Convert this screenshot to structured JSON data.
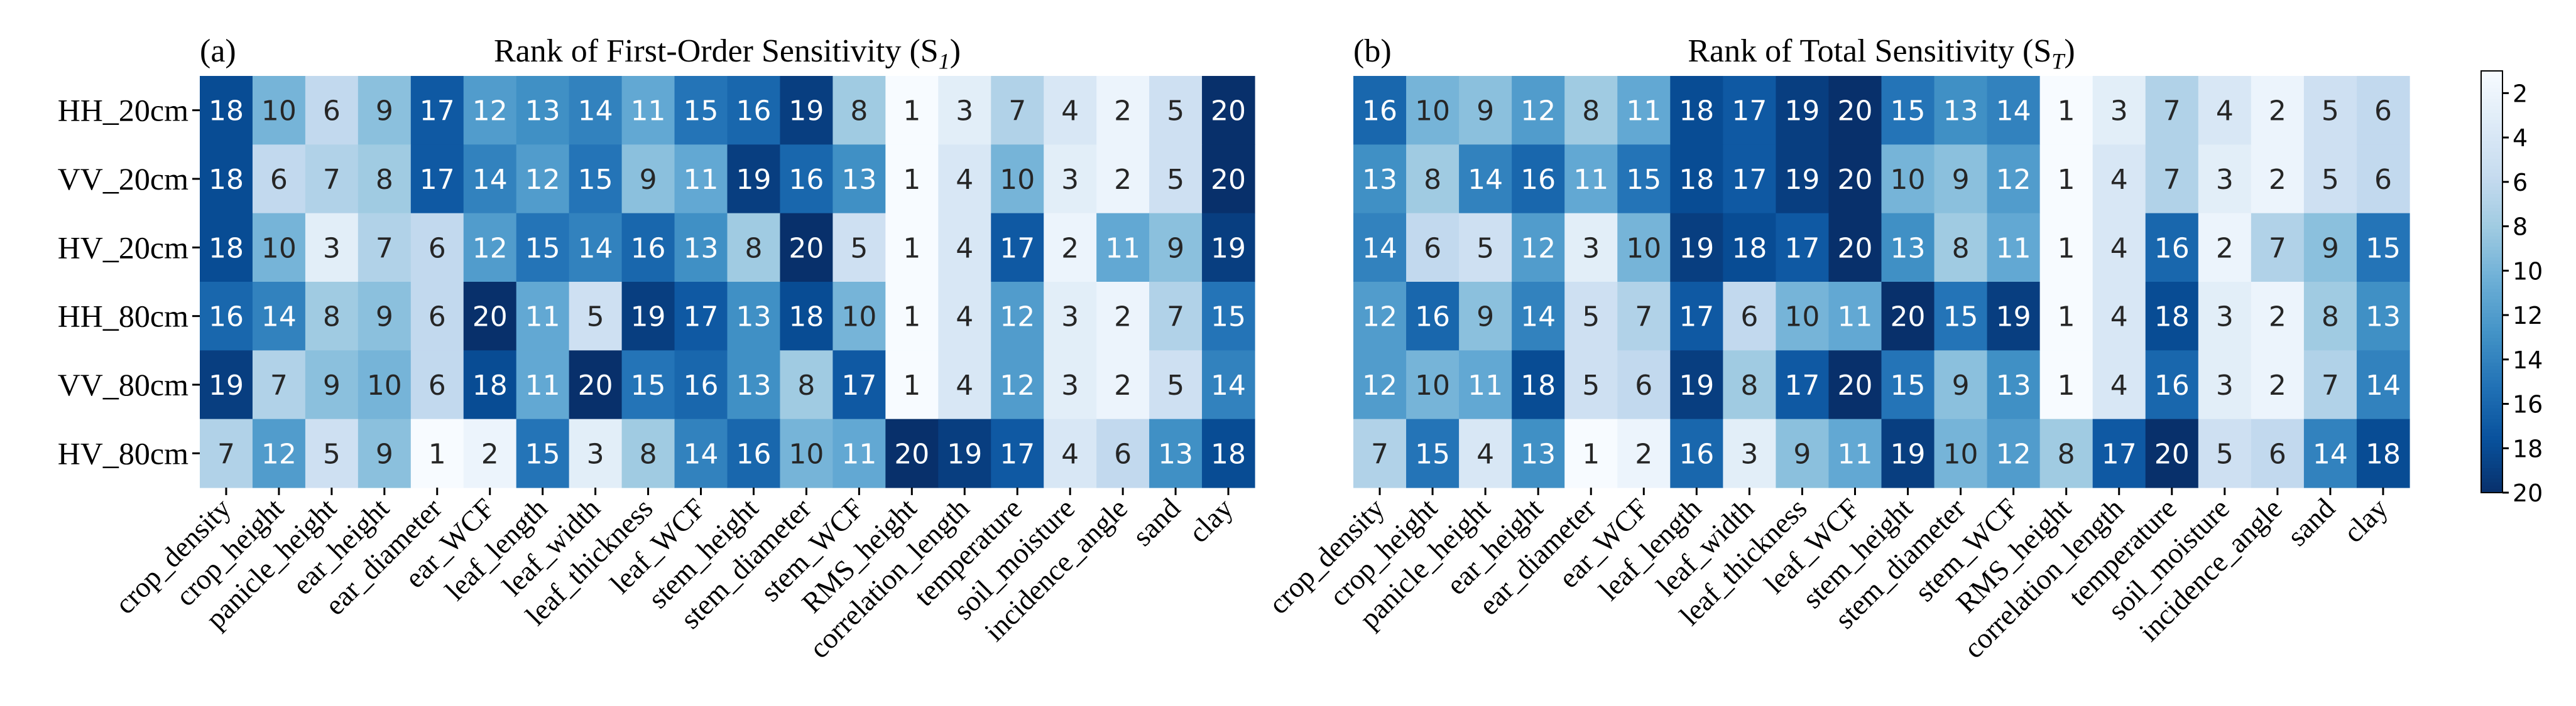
{
  "chart_data": [
    {
      "type": "heatmap",
      "panel_label": "(a)",
      "title": "Rank of First-Order Sensitivity (S",
      "title_sub": "1",
      "title_close": ")",
      "rows": [
        "HH_20cm",
        "VV_20cm",
        "HV_20cm",
        "HH_80cm",
        "VV_80cm",
        "HV_80cm"
      ],
      "columns": [
        "crop_density",
        "crop_height",
        "panicle_height",
        "ear_height",
        "ear_diameter",
        "ear_WCF",
        "leaf_length",
        "leaf_width",
        "leaf_thickness",
        "leaf_WCF",
        "stem_height",
        "stem_diameter",
        "stem_WCF",
        "RMS_height",
        "correlation_length",
        "temperature",
        "soil_moisture",
        "incidence_angle",
        "sand",
        "clay"
      ],
      "values": [
        [
          18,
          10,
          6,
          9,
          17,
          12,
          13,
          14,
          11,
          15,
          16,
          19,
          8,
          1,
          3,
          7,
          4,
          2,
          5,
          20
        ],
        [
          18,
          6,
          7,
          8,
          17,
          14,
          12,
          15,
          9,
          11,
          19,
          16,
          13,
          1,
          4,
          10,
          3,
          2,
          5,
          20
        ],
        [
          18,
          10,
          3,
          7,
          6,
          12,
          15,
          14,
          16,
          13,
          8,
          20,
          5,
          1,
          4,
          17,
          2,
          11,
          9,
          19
        ],
        [
          16,
          14,
          8,
          9,
          6,
          20,
          11,
          5,
          19,
          17,
          13,
          18,
          10,
          1,
          4,
          12,
          3,
          2,
          7,
          15
        ],
        [
          19,
          7,
          9,
          10,
          6,
          18,
          11,
          20,
          15,
          16,
          13,
          8,
          17,
          1,
          4,
          12,
          3,
          2,
          5,
          14
        ],
        [
          7,
          12,
          5,
          9,
          1,
          2,
          15,
          3,
          8,
          14,
          16,
          10,
          11,
          20,
          19,
          17,
          4,
          6,
          13,
          18
        ]
      ]
    },
    {
      "type": "heatmap",
      "panel_label": "(b)",
      "title": "Rank of Total Sensitivity (S",
      "title_sub": "T",
      "title_close": ")",
      "rows": [
        "HH_20cm",
        "VV_20cm",
        "HV_20cm",
        "HH_80cm",
        "VV_80cm",
        "HV_80cm"
      ],
      "columns": [
        "crop_density",
        "crop_height",
        "panicle_height",
        "ear_height",
        "ear_diameter",
        "ear_WCF",
        "leaf_length",
        "leaf_width",
        "leaf_thickness",
        "leaf_WCF",
        "stem_height",
        "stem_diameter",
        "stem_WCF",
        "RMS_height",
        "correlation_length",
        "temperature",
        "soil_moisture",
        "incidence_angle",
        "sand",
        "clay"
      ],
      "values": [
        [
          16,
          10,
          9,
          12,
          8,
          11,
          18,
          17,
          19,
          20,
          15,
          13,
          14,
          1,
          3,
          7,
          4,
          2,
          5,
          6
        ],
        [
          13,
          8,
          14,
          16,
          11,
          15,
          18,
          17,
          19,
          20,
          10,
          9,
          12,
          1,
          4,
          7,
          3,
          2,
          5,
          6
        ],
        [
          14,
          6,
          5,
          12,
          3,
          10,
          19,
          18,
          17,
          20,
          13,
          8,
          11,
          1,
          4,
          16,
          2,
          7,
          9,
          15
        ],
        [
          12,
          16,
          9,
          14,
          5,
          7,
          17,
          6,
          10,
          11,
          20,
          15,
          19,
          1,
          4,
          18,
          3,
          2,
          8,
          13
        ],
        [
          12,
          10,
          11,
          18,
          5,
          6,
          19,
          8,
          17,
          20,
          15,
          9,
          13,
          1,
          4,
          16,
          3,
          2,
          7,
          14
        ],
        [
          7,
          15,
          4,
          13,
          1,
          2,
          16,
          3,
          9,
          11,
          19,
          10,
          12,
          8,
          17,
          20,
          5,
          6,
          14,
          18
        ]
      ]
    }
  ],
  "colorbar": {
    "colormap": "Blues",
    "range": [
      1,
      20
    ],
    "ticks": [
      "2",
      "4",
      "6",
      "8",
      "10",
      "12",
      "14",
      "16",
      "18",
      "20"
    ],
    "colors": [
      "#f7fbff",
      "#deebf7",
      "#c6dbef",
      "#9ecae1",
      "#6baed6",
      "#4292c6",
      "#2171b5",
      "#08519c",
      "#08306b"
    ]
  }
}
